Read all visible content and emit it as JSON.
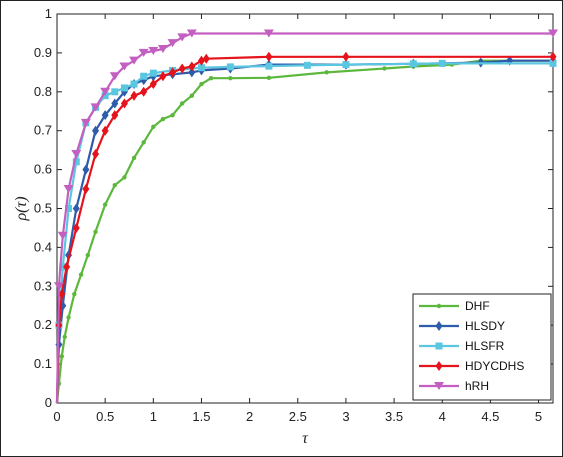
{
  "chart_data": {
    "type": "line",
    "xlabel": "τ",
    "ylabel": "ρ(τ)",
    "xlim": [
      0,
      5.15
    ],
    "ylim": [
      0,
      1
    ],
    "x_ticks": [
      "0",
      "0.5",
      "1",
      "1.5",
      "2",
      "2.5",
      "3",
      "3.5",
      "4",
      "4.5",
      "5"
    ],
    "y_ticks": [
      "0",
      "0.1",
      "0.2",
      "0.3",
      "0.4",
      "0.5",
      "0.6",
      "0.7",
      "0.8",
      "0.9",
      "1"
    ],
    "grid": false,
    "legend_position": "bottom-right",
    "series": [
      {
        "name": "DHF",
        "color": "#5cb83c",
        "marker": "dot",
        "points": [
          [
            0,
            0
          ],
          [
            0.02,
            0.05
          ],
          [
            0.05,
            0.12
          ],
          [
            0.08,
            0.17
          ],
          [
            0.12,
            0.22
          ],
          [
            0.18,
            0.28
          ],
          [
            0.25,
            0.33
          ],
          [
            0.32,
            0.38
          ],
          [
            0.4,
            0.44
          ],
          [
            0.5,
            0.51
          ],
          [
            0.6,
            0.56
          ],
          [
            0.7,
            0.58
          ],
          [
            0.8,
            0.63
          ],
          [
            0.9,
            0.67
          ],
          [
            1.0,
            0.71
          ],
          [
            1.1,
            0.73
          ],
          [
            1.2,
            0.74
          ],
          [
            1.3,
            0.77
          ],
          [
            1.4,
            0.79
          ],
          [
            1.5,
            0.82
          ],
          [
            1.6,
            0.835
          ],
          [
            1.8,
            0.835
          ],
          [
            2.2,
            0.836
          ],
          [
            2.8,
            0.85
          ],
          [
            3.4,
            0.86
          ],
          [
            3.7,
            0.865
          ],
          [
            4.1,
            0.87
          ],
          [
            4.4,
            0.88
          ],
          [
            5.15,
            0.88
          ]
        ]
      },
      {
        "name": "HLSDY",
        "color": "#2e5caa",
        "marker": "diamond",
        "points": [
          [
            0,
            0
          ],
          [
            0.02,
            0.15
          ],
          [
            0.06,
            0.25
          ],
          [
            0.12,
            0.38
          ],
          [
            0.2,
            0.5
          ],
          [
            0.3,
            0.6
          ],
          [
            0.4,
            0.7
          ],
          [
            0.5,
            0.74
          ],
          [
            0.6,
            0.77
          ],
          [
            0.7,
            0.8
          ],
          [
            0.8,
            0.82
          ],
          [
            0.9,
            0.83
          ],
          [
            1.0,
            0.84
          ],
          [
            1.2,
            0.845
          ],
          [
            1.4,
            0.85
          ],
          [
            1.5,
            0.855
          ],
          [
            1.8,
            0.86
          ],
          [
            2.2,
            0.87
          ],
          [
            3.0,
            0.87
          ],
          [
            3.7,
            0.872
          ],
          [
            4.4,
            0.875
          ],
          [
            4.7,
            0.88
          ],
          [
            5.15,
            0.88
          ]
        ]
      },
      {
        "name": "HLSFR",
        "color": "#5bc6e0",
        "marker": "square",
        "points": [
          [
            0,
            0
          ],
          [
            0.02,
            0.2
          ],
          [
            0.06,
            0.35
          ],
          [
            0.12,
            0.5
          ],
          [
            0.2,
            0.62
          ],
          [
            0.3,
            0.72
          ],
          [
            0.4,
            0.76
          ],
          [
            0.5,
            0.79
          ],
          [
            0.6,
            0.8
          ],
          [
            0.7,
            0.81
          ],
          [
            0.8,
            0.82
          ],
          [
            0.9,
            0.84
          ],
          [
            1.0,
            0.848
          ],
          [
            1.2,
            0.855
          ],
          [
            1.5,
            0.862
          ],
          [
            1.8,
            0.864
          ],
          [
            2.2,
            0.866
          ],
          [
            2.6,
            0.868
          ],
          [
            3.0,
            0.87
          ],
          [
            3.7,
            0.872
          ],
          [
            4.0,
            0.873
          ],
          [
            5.15,
            0.873
          ]
        ]
      },
      {
        "name": "HDYCDHS",
        "color": "#e5131b",
        "marker": "diamond",
        "points": [
          [
            0,
            0
          ],
          [
            0.02,
            0.2
          ],
          [
            0.05,
            0.28
          ],
          [
            0.1,
            0.35
          ],
          [
            0.2,
            0.45
          ],
          [
            0.3,
            0.55
          ],
          [
            0.4,
            0.64
          ],
          [
            0.5,
            0.7
          ],
          [
            0.6,
            0.74
          ],
          [
            0.7,
            0.77
          ],
          [
            0.8,
            0.79
          ],
          [
            0.9,
            0.8
          ],
          [
            1.0,
            0.82
          ],
          [
            1.1,
            0.84
          ],
          [
            1.2,
            0.85
          ],
          [
            1.3,
            0.86
          ],
          [
            1.4,
            0.865
          ],
          [
            1.5,
            0.88
          ],
          [
            1.55,
            0.885
          ],
          [
            2.2,
            0.89
          ],
          [
            3.0,
            0.89
          ],
          [
            5.15,
            0.89
          ]
        ]
      },
      {
        "name": "hRH",
        "color": "#c35fc0",
        "marker": "triangle-down",
        "points": [
          [
            0,
            0
          ],
          [
            0.02,
            0.3
          ],
          [
            0.06,
            0.43
          ],
          [
            0.12,
            0.55
          ],
          [
            0.2,
            0.64
          ],
          [
            0.3,
            0.72
          ],
          [
            0.4,
            0.76
          ],
          [
            0.5,
            0.8
          ],
          [
            0.6,
            0.84
          ],
          [
            0.7,
            0.865
          ],
          [
            0.8,
            0.88
          ],
          [
            0.9,
            0.9
          ],
          [
            1.0,
            0.905
          ],
          [
            1.1,
            0.91
          ],
          [
            1.2,
            0.925
          ],
          [
            1.3,
            0.94
          ],
          [
            1.4,
            0.95
          ],
          [
            2.2,
            0.95
          ],
          [
            5.15,
            0.95
          ]
        ]
      }
    ]
  }
}
